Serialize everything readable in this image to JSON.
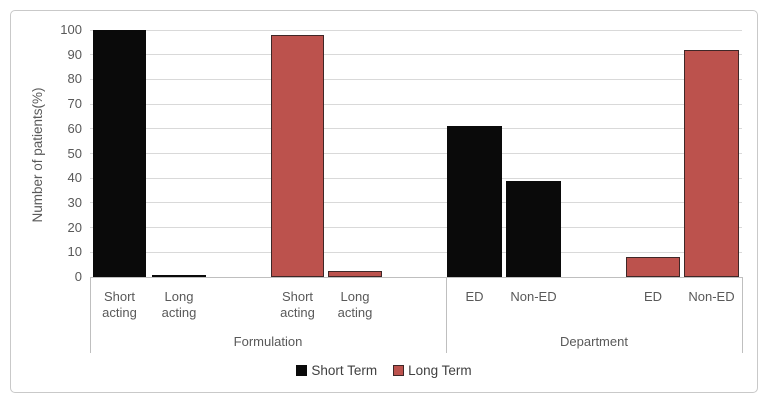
{
  "figure": {
    "background_color": "#ffffff",
    "frame_border_color": "#c9c9c9"
  },
  "chart_data": {
    "type": "bar",
    "title": "",
    "xlabel": "",
    "ylabel": "Number of patients(%)",
    "ylim": [
      0,
      100
    ],
    "ytick_step": 10,
    "yticks": [
      0,
      10,
      20,
      30,
      40,
      50,
      60,
      70,
      80,
      90,
      100
    ],
    "grid": "horizontal",
    "gridline_color": "#d9d9d9",
    "axis_line_color": "#bfbfbf",
    "legend_position": "bottom-center",
    "series": [
      {
        "name": "Short Term",
        "color": "#0a0a0a",
        "border_color": "#0a0a0a"
      },
      {
        "name": "Long Term",
        "color": "#bc524d",
        "border_color": "#3f2727"
      }
    ],
    "axis_groups": [
      {
        "label": "Formulation",
        "categories": [
          "Short acting",
          "Long acting",
          "Short acting",
          "Long acting"
        ]
      },
      {
        "label": "Department",
        "categories": [
          "ED",
          "Non-ED",
          "ED",
          "Non-ED"
        ]
      }
    ],
    "bars": [
      {
        "group": "Formulation",
        "category": "Short acting",
        "series": "Short Term",
        "value": 100
      },
      {
        "group": "Formulation",
        "category": "Long acting",
        "series": "Short Term",
        "value": 0.5
      },
      {
        "group": "Formulation",
        "category": "Short acting",
        "series": "Long Term",
        "value": 98
      },
      {
        "group": "Formulation",
        "category": "Long acting",
        "series": "Long Term",
        "value": 2.5
      },
      {
        "group": "Department",
        "category": "ED",
        "series": "Short Term",
        "value": 61
      },
      {
        "group": "Department",
        "category": "Non-ED",
        "series": "Short Term",
        "value": 39
      },
      {
        "group": "Department",
        "category": "ED",
        "series": "Long Term",
        "value": 8
      },
      {
        "group": "Department",
        "category": "Non-ED",
        "series": "Long Term",
        "value": 92
      }
    ]
  }
}
